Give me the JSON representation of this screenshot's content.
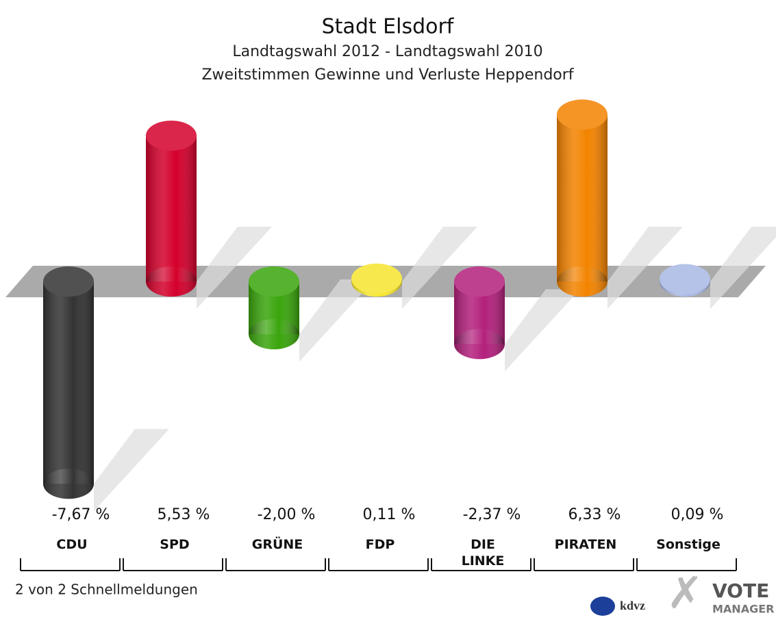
{
  "chart_data": {
    "type": "bar",
    "title": "Stadt Elsdorf",
    "subtitle": [
      "Landtagswahl 2012 - Landtagswahl 2010",
      "Zweitstimmen Gewinne und Verluste Heppendorf"
    ],
    "categories": [
      "CDU",
      "SPD",
      "GRÜNE",
      "FDP",
      "DIE LINKE",
      "PIRATEN",
      "Sonstige"
    ],
    "values": [
      -7.67,
      5.53,
      -2.0,
      0.11,
      -2.37,
      6.33,
      0.09
    ],
    "value_labels": [
      "-7,67 %",
      "5,53 %",
      "-2,00 %",
      "0,11 %",
      "-2,37 %",
      "6,33 %",
      "0,09 %"
    ],
    "colors": [
      "#333333",
      "#d4002b",
      "#3aa50c",
      "#f6e62e",
      "#b3207c",
      "#f38300",
      "#a9b9e4"
    ]
  },
  "footer": {
    "note": "2 von 2 Schnellmeldungen",
    "logo_left": "kdvz",
    "logo_right": [
      "VOTE",
      "MANAGER"
    ]
  }
}
